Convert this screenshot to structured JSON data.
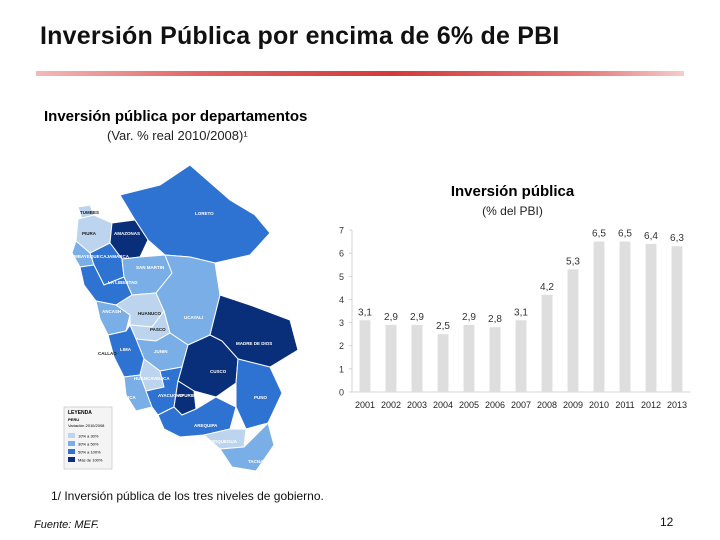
{
  "title": "Inversión Pública por encima de 6% de PBI",
  "map": {
    "title": "Inversión pública por departamentos",
    "subtitle": "(Var. % real 2010/2008)¹",
    "regions": [
      "TUMBES",
      "LORETO",
      "PIURA",
      "AMAZONAS",
      "LAMBAYEQUE",
      "CAJAMARCA",
      "SAN MARTIN",
      "LA LIBERTAD",
      "ANCASH",
      "HUANUCO",
      "UCAYALI",
      "PASCO",
      "JUNIN",
      "CALLAO",
      "LIMA",
      "MADRE DE DIOS",
      "HUANCAVELICA",
      "CUSCO",
      "ICA",
      "AYACUCHO",
      "APURIMAC",
      "PUNO",
      "AREQUIPA",
      "MOQUEGUA",
      "TACNA"
    ],
    "legend": {
      "title": "LEYENDA",
      "subtitle": "PERU",
      "caption": "Variación 2010/2008",
      "items": [
        {
          "label": "10% a 30%",
          "color": "#bcd4ee"
        },
        {
          "label": "30% a 50%",
          "color": "#7aaee6"
        },
        {
          "label": "50% a 100%",
          "color": "#2f73d2"
        },
        {
          "label": "Más de 100%",
          "color": "#0a2f7a"
        }
      ]
    }
  },
  "chart_data": {
    "type": "bar",
    "title": "Inversión pública",
    "subtitle": "(% del PBI)",
    "categories": [
      "2001",
      "2002",
      "2003",
      "2004",
      "2005",
      "2006",
      "2007",
      "2008",
      "2009",
      "2010",
      "2011",
      "2012",
      "2013"
    ],
    "values": [
      3.1,
      2.9,
      2.9,
      2.5,
      2.9,
      2.8,
      3.1,
      4.2,
      5.3,
      6.5,
      6.5,
      6.4,
      6.3
    ],
    "value_labels": [
      "3,1",
      "2,9",
      "2,9",
      "2,5",
      "2,9",
      "2,8",
      "3,1",
      "4,2",
      "5,3",
      "6,5",
      "6,5",
      "6,4",
      "6,3"
    ],
    "yticks": [
      0,
      1,
      2,
      3,
      4,
      5,
      6,
      7
    ],
    "ylim": [
      0,
      7
    ],
    "bar_color": "#dedede",
    "grid": false,
    "legend": "none"
  },
  "footnote": "1/ Inversión pública de los tres niveles de gobierno.",
  "source": "Fuente: MEF.",
  "page_number": "12"
}
